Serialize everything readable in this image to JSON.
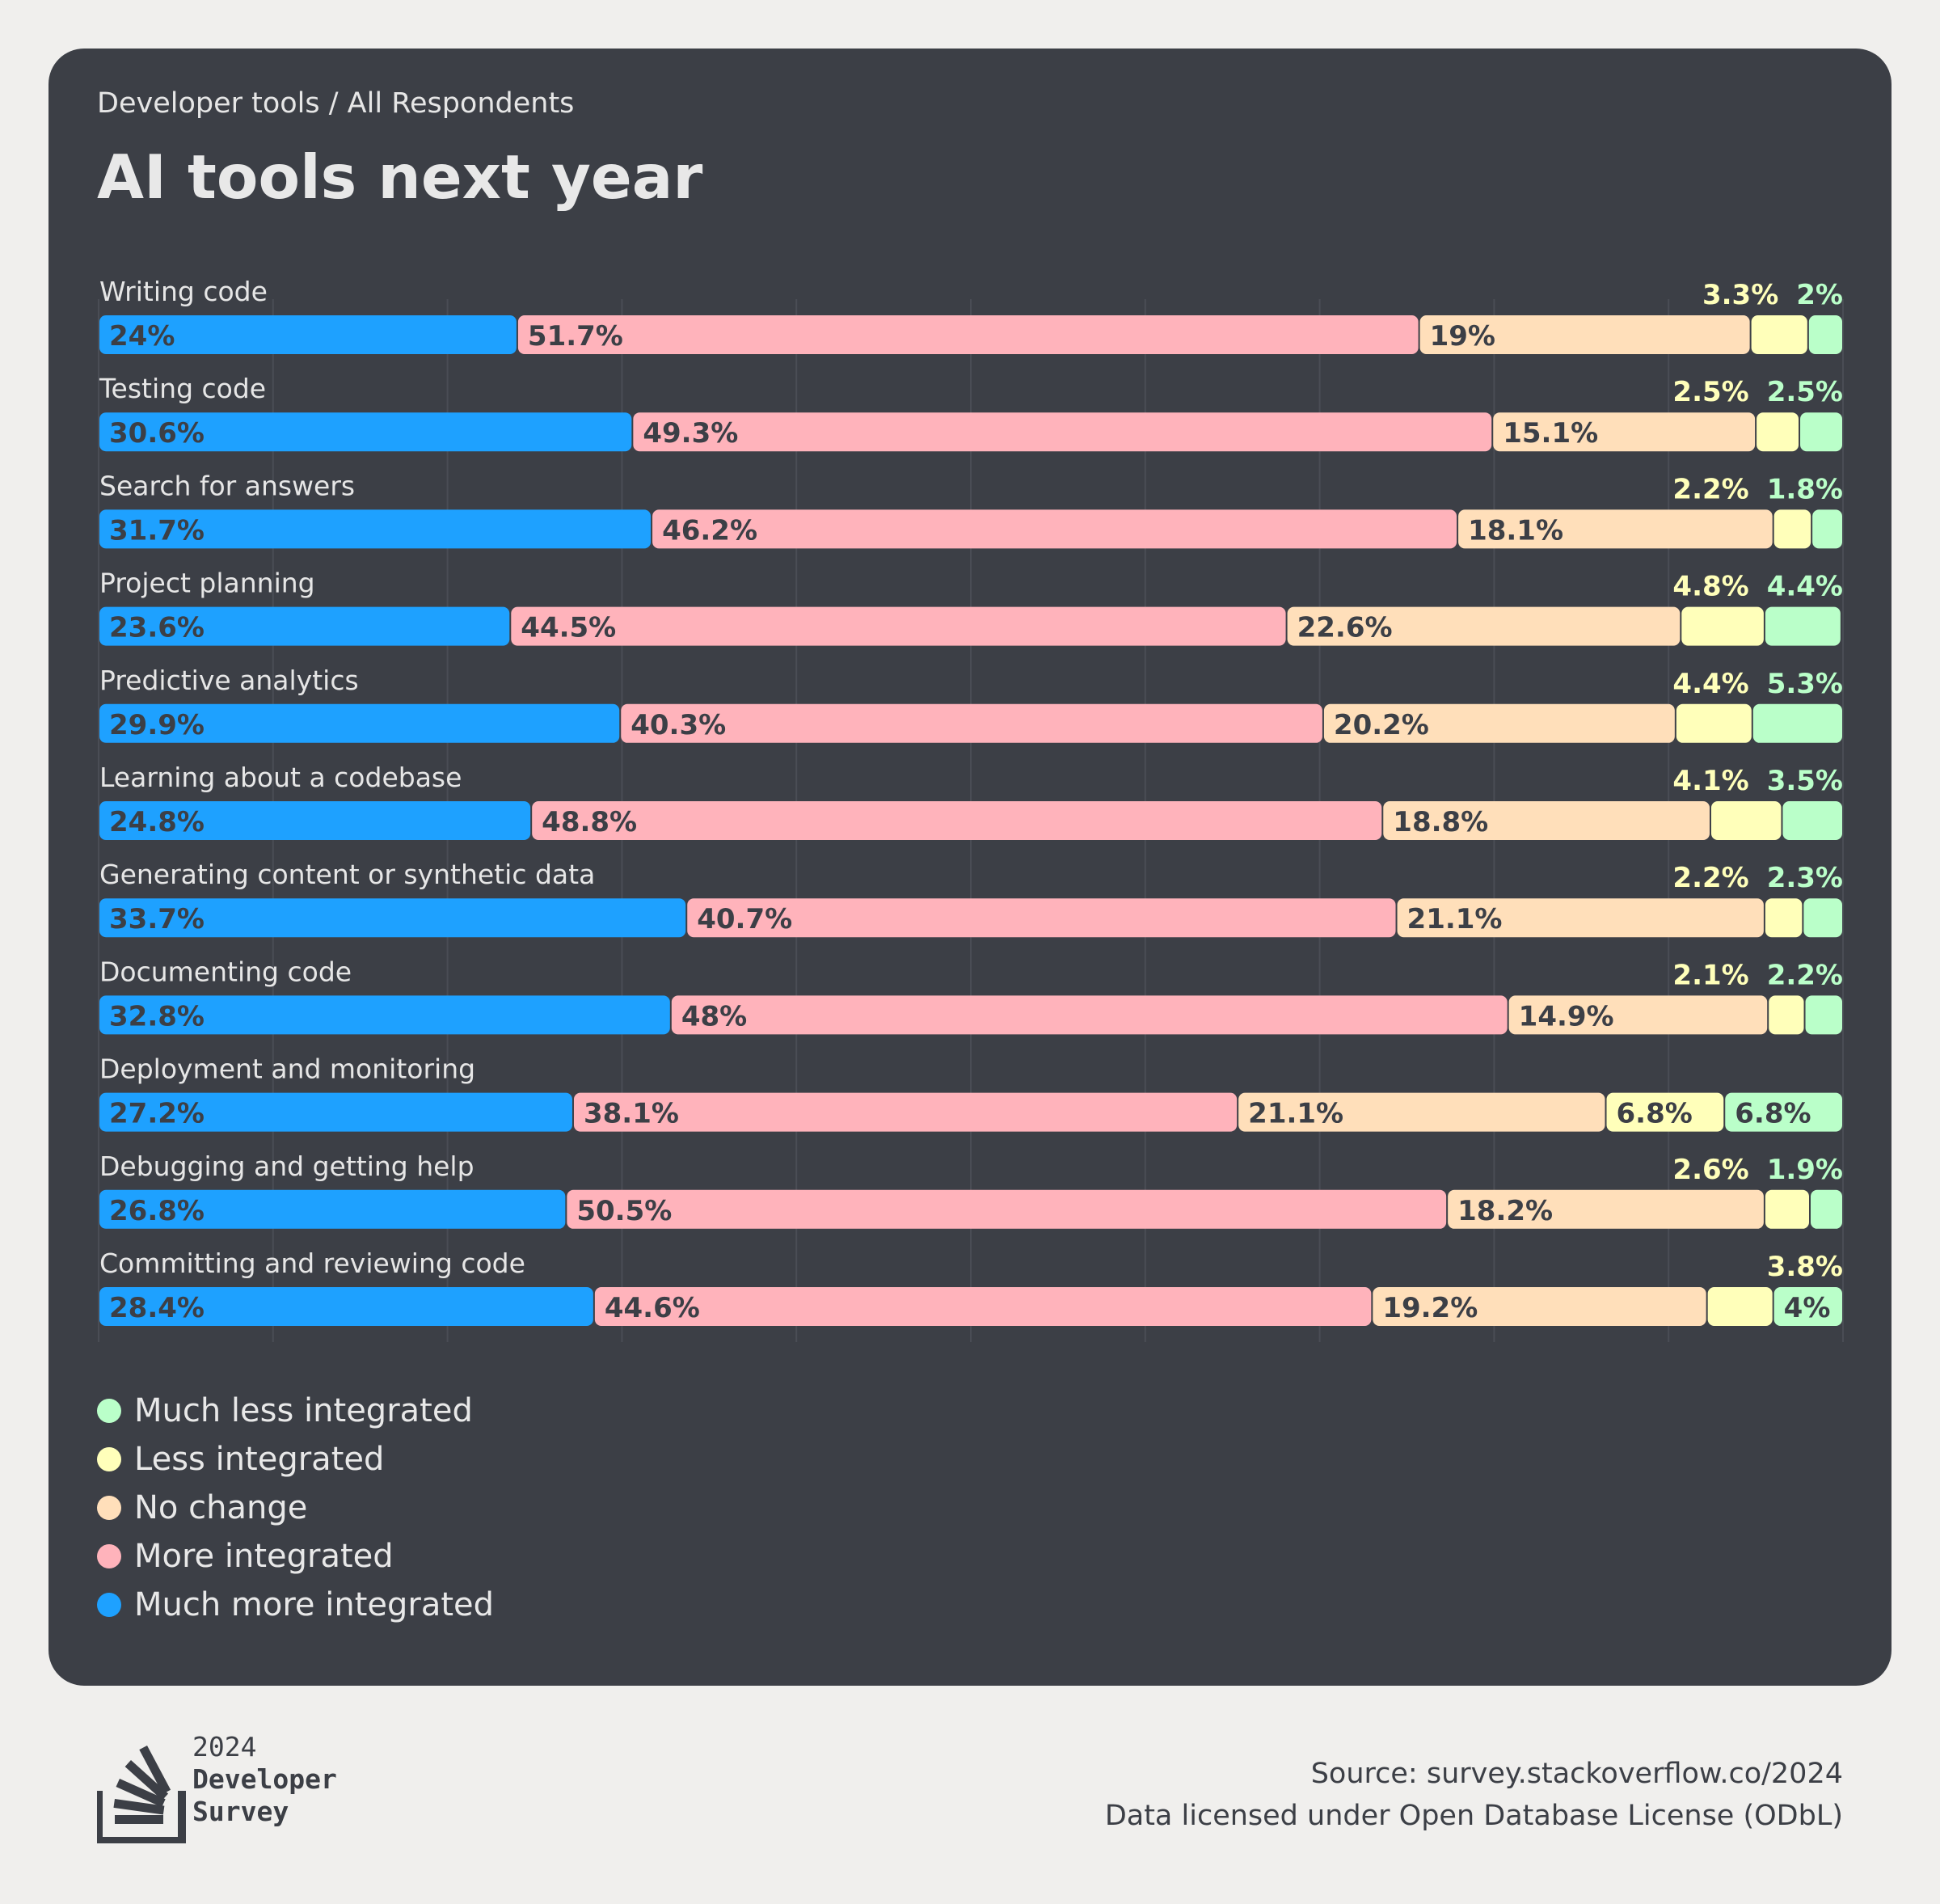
{
  "header": {
    "subtitle": "Developer tools / All Respondents",
    "title": "AI tools next year"
  },
  "colors": {
    "Much more integrated": "#1ea1ff",
    "More integrated": "#ffb3bb",
    "No change": "#ffdfba",
    "Less integrated": "#ffffba",
    "Much less integrated": "#baffc9"
  },
  "chart_data": {
    "type": "bar",
    "orientation": "horizontal-stacked",
    "xlim": [
      0,
      100
    ],
    "grid": true,
    "legend_position": "bottom-left",
    "categories": [
      "Writing code",
      "Testing code",
      "Search for answers",
      "Project planning",
      "Predictive analytics",
      "Learning about a codebase",
      "Generating content or synthetic data",
      "Documenting code",
      "Deployment and monitoring",
      "Debugging and getting help",
      "Committing and reviewing code"
    ],
    "series": [
      {
        "name": "Much more integrated",
        "values": [
          24,
          30.6,
          31.7,
          23.6,
          29.9,
          24.8,
          33.7,
          32.8,
          27.2,
          26.8,
          28.4
        ]
      },
      {
        "name": "More integrated",
        "values": [
          51.7,
          49.3,
          46.2,
          44.5,
          40.3,
          48.8,
          40.7,
          48,
          38.1,
          50.5,
          44.6
        ]
      },
      {
        "name": "No change",
        "values": [
          19,
          15.1,
          18.1,
          22.6,
          20.2,
          18.8,
          21.1,
          14.9,
          21.1,
          18.2,
          19.2
        ]
      },
      {
        "name": "Less integrated",
        "values": [
          3.3,
          2.5,
          2.2,
          4.8,
          4.4,
          4.1,
          2.2,
          2.1,
          6.8,
          2.6,
          3.8
        ]
      },
      {
        "name": "Much less integrated",
        "values": [
          2.0,
          2.5,
          1.8,
          4.4,
          5.3,
          3.5,
          2.3,
          2.2,
          6.8,
          1.9,
          4
        ]
      }
    ],
    "legend_order": [
      "Much less integrated",
      "Less integrated",
      "No change",
      "More integrated",
      "Much more integrated"
    ]
  },
  "footer": {
    "logo_year": "2024",
    "logo_line1": "Developer",
    "logo_line2": "Survey",
    "source": "Source: survey.stackoverflow.co/2024",
    "license": "Data licensed under Open Database License (ODbL)"
  }
}
